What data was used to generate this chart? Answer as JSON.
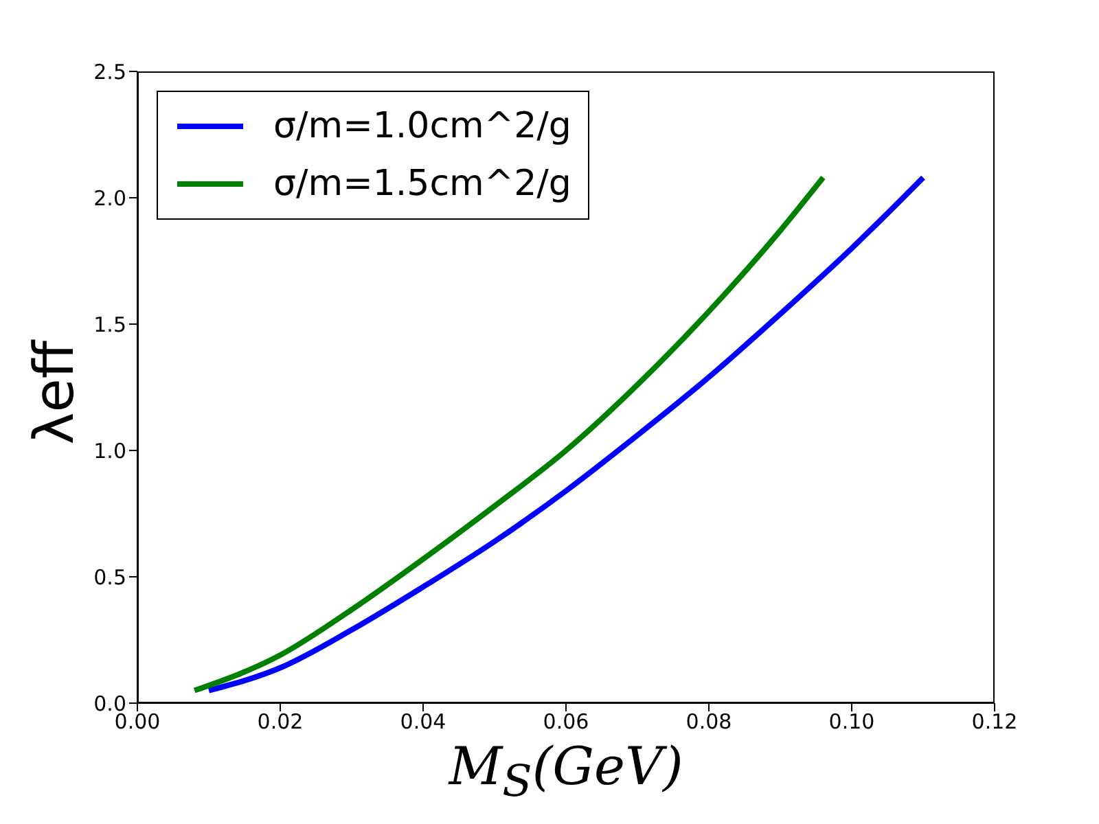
{
  "chart_data": {
    "type": "line",
    "xlabel": "M$_{S}$(GeV)",
    "ylabel": "λeff",
    "xlim": [
      0,
      0.12
    ],
    "xticks": [
      {
        "value": 0,
        "label": "0.00"
      },
      {
        "value": 0.02,
        "label": "0.02"
      },
      {
        "value": 0.04,
        "label": "0.04"
      },
      {
        "value": 0.06,
        "label": "0.06"
      },
      {
        "value": 0.08,
        "label": "0.08"
      },
      {
        "value": 0.1,
        "label": "0.10"
      },
      {
        "value": 0.12,
        "label": "0.12"
      }
    ],
    "ylim": [
      0,
      2.5
    ],
    "yticks": [
      {
        "value": 0,
        "label": "0.0"
      },
      {
        "value": 0.5,
        "label": "0.5"
      },
      {
        "value": 1,
        "label": "1.0"
      },
      {
        "value": 1.5,
        "label": "1.5"
      },
      {
        "value": 2,
        "label": "2.0"
      },
      {
        "value": 2.5,
        "label": "2.5"
      }
    ],
    "series": [
      {
        "name": "σ/m=1.0cm^2/g",
        "color": "#0000ff",
        "x": [
          0.01,
          0.02,
          0.03,
          0.04,
          0.05,
          0.06,
          0.07,
          0.08,
          0.09,
          0.1,
          0.11
        ],
        "values": [
          0.05,
          0.14,
          0.29,
          0.46,
          0.64,
          0.84,
          1.06,
          1.29,
          1.54,
          1.8,
          2.08
        ]
      },
      {
        "name": "σ/m=1.5cm^2/g",
        "color": "#008000",
        "x": [
          0.008,
          0.02,
          0.03,
          0.04,
          0.05,
          0.06,
          0.07,
          0.08,
          0.09,
          0.096
        ],
        "values": [
          0.05,
          0.19,
          0.37,
          0.57,
          0.78,
          1.0,
          1.26,
          1.55,
          1.87,
          2.08
        ]
      }
    ],
    "legend": "top left"
  }
}
